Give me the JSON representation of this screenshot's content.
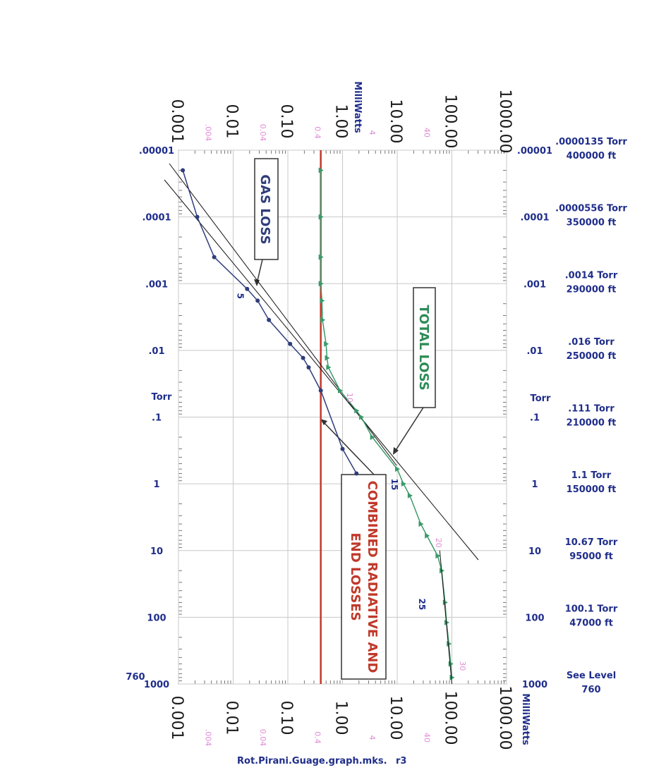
{
  "chart_data": {
    "type": "line",
    "orientation": "rotated-90-clockwise",
    "title": "",
    "pressure_axis": {
      "label": "Torr",
      "scale": "log",
      "range": [
        1e-05,
        1000
      ],
      "ticks": [
        {
          "value": 1e-05,
          "left": ".00001",
          "right": ".00001"
        },
        {
          "value": 0.0001,
          "left": ".0001",
          "right": ".0001"
        },
        {
          "value": 0.001,
          "left": ".001",
          "right": ".001"
        },
        {
          "value": 0.01,
          "left": ".01",
          "right": ".01"
        },
        {
          "value": 0.1,
          "left": ".1",
          "right": ".1"
        },
        {
          "value": 1,
          "left": "1",
          "right": "1"
        },
        {
          "value": 10,
          "left": "10",
          "right": "10"
        },
        {
          "value": 100,
          "left": "100",
          "right": "100"
        },
        {
          "value": 1000,
          "left": "1000",
          "right": "1000"
        }
      ],
      "extra_left_label": "760",
      "altitude_labels": [
        {
          "value": 1e-05,
          "line1": ".0000135 Torr",
          "line2": "400000 ft"
        },
        {
          "value": 0.0001,
          "line1": ".0000556 Torr",
          "line2": "350000 ft"
        },
        {
          "value": 0.001,
          "line1": ".0014 Torr",
          "line2": "290000 ft"
        },
        {
          "value": 0.01,
          "line1": ".016 Torr",
          "line2": "250000 ft"
        },
        {
          "value": 0.1,
          "line1": ".111 Torr",
          "line2": "210000 ft"
        },
        {
          "value": 1,
          "line1": "1.1 Torr",
          "line2": "150000 ft"
        },
        {
          "value": 10,
          "line1": "10.67 Torr",
          "line2": "95000 ft"
        },
        {
          "value": 100,
          "line1": "100.1 Torr",
          "line2": "47000 ft"
        },
        {
          "value": 1000,
          "line1": "See Level",
          "line2": "760"
        }
      ]
    },
    "power_axis": {
      "label": "MilliWatts",
      "scale": "log",
      "range": [
        0.001,
        1000
      ],
      "ticks": [
        {
          "value": 0.001,
          "label": "0.001"
        },
        {
          "value": 0.01,
          "label": "0.01"
        },
        {
          "value": 0.1,
          "label": "0.10"
        },
        {
          "value": 1,
          "label": "1.00"
        },
        {
          "value": 10,
          "label": "10.00"
        },
        {
          "value": 100,
          "label": "100.00"
        },
        {
          "value": 1000,
          "label": "1000.00"
        }
      ],
      "secondary_ticks": [
        {
          "value": 0.004,
          "label": ".004"
        },
        {
          "value": 0.04,
          "label": "0.04"
        },
        {
          "value": 0.4,
          "label": "0.4"
        },
        {
          "value": 4,
          "label": "4"
        },
        {
          "value": 40,
          "label": "40"
        }
      ]
    },
    "grid": true,
    "series": [
      {
        "name": "GAS LOSS",
        "color": "#2f3d7a",
        "points": [
          {
            "torr": 2e-05,
            "mw": 0.0012
          },
          {
            "torr": 0.0001,
            "mw": 0.0022
          },
          {
            "torr": 0.0004,
            "mw": 0.0045
          },
          {
            "torr": 0.0012,
            "mw": 0.018
          },
          {
            "torr": 0.0018,
            "mw": 0.028
          },
          {
            "torr": 0.0035,
            "mw": 0.045
          },
          {
            "torr": 0.008,
            "mw": 0.11
          },
          {
            "torr": 0.013,
            "mw": 0.19
          },
          {
            "torr": 0.018,
            "mw": 0.24
          },
          {
            "torr": 0.04,
            "mw": 0.4
          },
          {
            "torr": 0.3,
            "mw": 1.0
          },
          {
            "torr": 0.7,
            "mw": 1.8
          }
        ]
      },
      {
        "name": "TOTAL LOSS",
        "color": "#3a9a6a",
        "points": [
          {
            "torr": 2e-05,
            "mw": 0.4
          },
          {
            "torr": 0.0001,
            "mw": 0.4
          },
          {
            "torr": 0.0004,
            "mw": 0.4
          },
          {
            "torr": 0.001,
            "mw": 0.4
          },
          {
            "torr": 0.0018,
            "mw": 0.42
          },
          {
            "torr": 0.0035,
            "mw": 0.43
          },
          {
            "torr": 0.008,
            "mw": 0.5
          },
          {
            "torr": 0.013,
            "mw": 0.52
          },
          {
            "torr": 0.018,
            "mw": 0.55
          },
          {
            "torr": 0.04,
            "mw": 0.9
          },
          {
            "torr": 0.08,
            "mw": 1.8
          },
          {
            "torr": 0.1,
            "mw": 2.2
          },
          {
            "torr": 0.2,
            "mw": 3.5
          },
          {
            "torr": 0.6,
            "mw": 10
          },
          {
            "torr": 1.0,
            "mw": 13
          },
          {
            "torr": 1.5,
            "mw": 17
          },
          {
            "torr": 4,
            "mw": 27
          },
          {
            "torr": 6,
            "mw": 35
          },
          {
            "torr": 12,
            "mw": 55
          },
          {
            "torr": 20,
            "mw": 65
          },
          {
            "torr": 60,
            "mw": 75
          },
          {
            "torr": 120,
            "mw": 80
          },
          {
            "torr": 250,
            "mw": 88
          },
          {
            "torr": 500,
            "mw": 95
          },
          {
            "torr": 800,
            "mw": 100
          }
        ]
      },
      {
        "name": "COMBINED RADIATIVE AND END LOSSES",
        "color": "#c0392b",
        "constant_mw": 0.4
      }
    ],
    "point_annotations": [
      {
        "label": "5",
        "torr": 0.0012,
        "mw": 0.018
      },
      {
        "label": "10",
        "torr": 0.04,
        "mw": 0.9
      },
      {
        "label": "15",
        "torr": 0.8,
        "mw": 12
      },
      {
        "label": "20",
        "torr": 6,
        "mw": 38
      },
      {
        "label": "25",
        "torr": 50,
        "mw": 38
      },
      {
        "label": "30",
        "torr": 420,
        "mw": 105
      }
    ],
    "annotations": [
      {
        "text": "GAS LOSS"
      },
      {
        "text": "TOTAL LOSS"
      },
      {
        "text_line1": "COMBINED RADIATIVE AND",
        "text_line2": "END LOSSES"
      }
    ],
    "caption": "Rot.Pirani.Guage.graph.mks.",
    "caption_suffix": "r3"
  }
}
